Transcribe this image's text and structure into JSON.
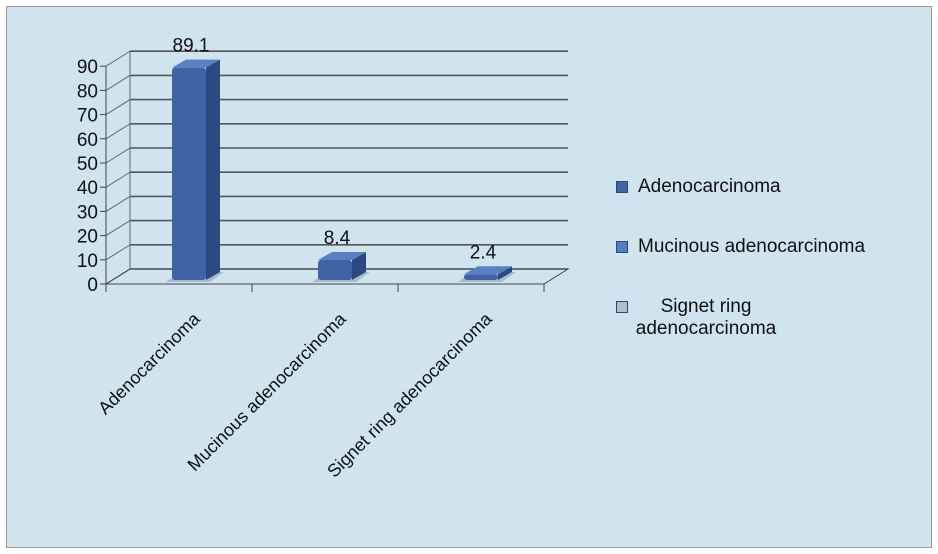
{
  "chart_data": {
    "type": "bar",
    "categories": [
      "Adenocarcinoma",
      "Mucinous adenocarcinoma",
      "Signet ring adenocarcinoma"
    ],
    "values": [
      89.1,
      8.4,
      2.4
    ],
    "data_labels": [
      "89.1",
      "8.4",
      "2.4"
    ],
    "ylim": [
      0,
      90
    ],
    "yticks": [
      "0",
      "10",
      "20",
      "30",
      "40",
      "50",
      "60",
      "70",
      "80",
      "90"
    ],
    "grid": true,
    "three_d": true,
    "legend_position": "right",
    "colors": {
      "bar": "#3f64a6",
      "bar_dark": "#2c4a82",
      "bar_light": "#5a80c4",
      "background": "#cfe4ee",
      "grid": "#555555"
    },
    "legend": [
      {
        "label": "Adenocarcinoma",
        "color": "#3f64a6"
      },
      {
        "label": "Mucinous adenocarcinoma",
        "color": "#4f7ec4"
      },
      {
        "label": "Signet ring adenocarcinoma",
        "color": "#b8bcc8"
      }
    ]
  }
}
